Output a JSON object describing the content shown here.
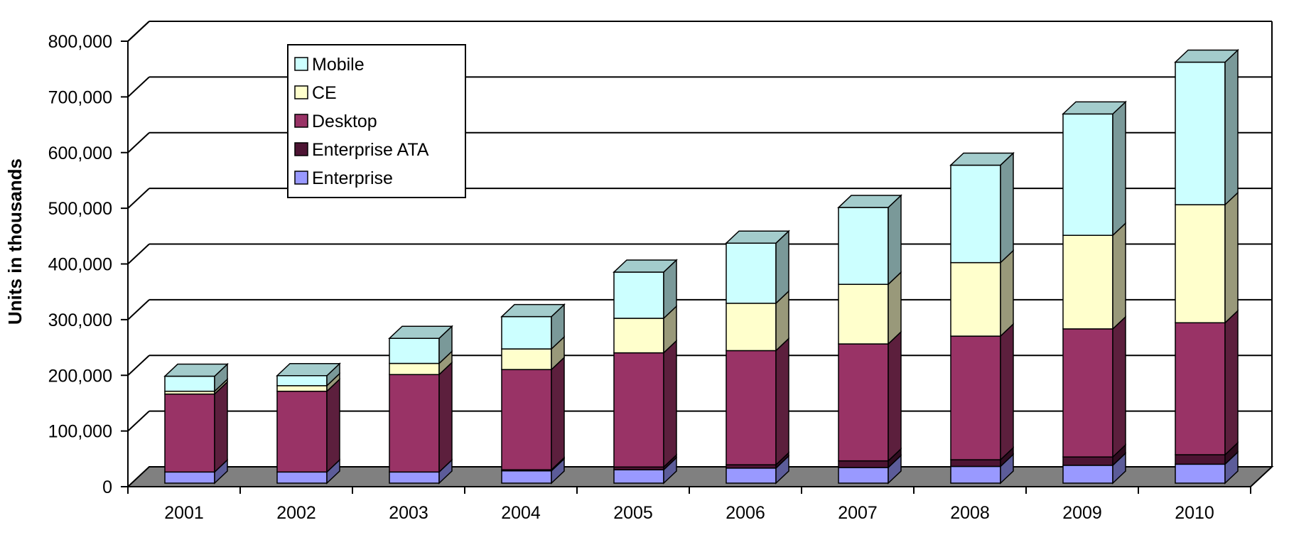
{
  "chart_data": {
    "type": "bar",
    "stacked": true,
    "three_d": true,
    "title": "",
    "xlabel": "",
    "ylabel": "Units in thousands",
    "ylim": [
      0,
      800000
    ],
    "y_ticks": [
      0,
      100000,
      200000,
      300000,
      400000,
      500000,
      600000,
      700000,
      800000
    ],
    "y_tick_labels": [
      "0",
      "100,000",
      "200,000",
      "300,000",
      "400,000",
      "500,000",
      "600,000",
      "700,000",
      "800,000"
    ],
    "grid": true,
    "legend_position": "top-left",
    "categories": [
      "2001",
      "2002",
      "2003",
      "2004",
      "2005",
      "2006",
      "2007",
      "2008",
      "2009",
      "2010"
    ],
    "series": [
      {
        "name": "Enterprise",
        "color": "#9999ff",
        "values": [
          20000,
          20000,
          20000,
          22000,
          24000,
          27000,
          28000,
          30000,
          32000,
          34000
        ]
      },
      {
        "name": "Enterprise ATA",
        "color": "#4d1433",
        "values": [
          0,
          0,
          0,
          2000,
          5000,
          6000,
          12000,
          12000,
          15000,
          17000
        ]
      },
      {
        "name": "Desktop",
        "color": "#993366",
        "values": [
          140000,
          145000,
          175000,
          180000,
          205000,
          205000,
          210000,
          222000,
          230000,
          237000
        ]
      },
      {
        "name": "CE",
        "color": "#ffffcc",
        "values": [
          5000,
          10000,
          20000,
          37000,
          62000,
          85000,
          107000,
          132000,
          168000,
          212000
        ]
      },
      {
        "name": "Mobile",
        "color": "#ccffff",
        "values": [
          27000,
          18000,
          45000,
          58000,
          83000,
          108000,
          138000,
          175000,
          218000,
          256000
        ]
      }
    ],
    "legend_order": [
      "Mobile",
      "CE",
      "Desktop",
      "Enterprise ATA",
      "Enterprise"
    ],
    "colors": {
      "floor": "#808080",
      "grid": "#000000",
      "axis_text": "#000000",
      "legend_border": "#000000"
    }
  }
}
